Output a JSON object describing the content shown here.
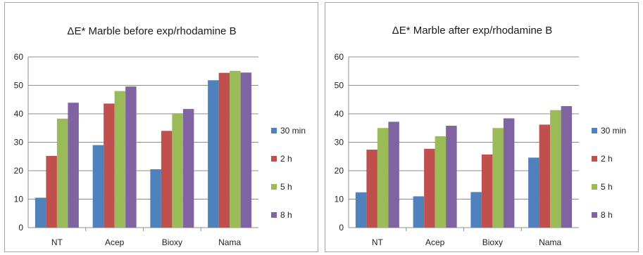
{
  "chart_data": [
    {
      "type": "bar",
      "title": "ΔE* Marble before exp/rhodamine B",
      "categories": [
        "NT",
        "Acep",
        "Bioxy",
        "Nama"
      ],
      "ylim": [
        0,
        60
      ],
      "yticks": [
        0,
        10,
        20,
        30,
        40,
        50,
        60
      ],
      "grid": true,
      "legend_position": "right",
      "series": [
        {
          "name": "30 min",
          "color": "#4f81bd",
          "values": [
            10.5,
            29,
            20.5,
            51.8
          ]
        },
        {
          "name": "2 h",
          "color": "#c0504d",
          "values": [
            25.2,
            43.6,
            34,
            54.4
          ]
        },
        {
          "name": "5 h",
          "color": "#9bbb59",
          "values": [
            38.3,
            48,
            40.2,
            55.1
          ]
        },
        {
          "name": "8 h",
          "color": "#8064a2",
          "values": [
            43.9,
            49.6,
            41.7,
            54.5
          ]
        }
      ]
    },
    {
      "type": "bar",
      "title": "ΔE* Marble after exp/rhodamine B",
      "categories": [
        "NT",
        "Acep",
        "Bioxy",
        "Nama"
      ],
      "ylim": [
        0,
        60
      ],
      "yticks": [
        0,
        10,
        20,
        30,
        40,
        50,
        60
      ],
      "grid": true,
      "legend_position": "right",
      "series": [
        {
          "name": "30 min",
          "color": "#4f81bd",
          "values": [
            12.4,
            11,
            12.5,
            24.6
          ]
        },
        {
          "name": "2 h",
          "color": "#c0504d",
          "values": [
            27.4,
            27.7,
            25.7,
            36.2
          ]
        },
        {
          "name": "5 h",
          "color": "#9bbb59",
          "values": [
            35,
            32.1,
            35,
            41.3
          ]
        },
        {
          "name": "8 h",
          "color": "#8064a2",
          "values": [
            37.2,
            35.8,
            38.4,
            42.7
          ]
        }
      ]
    }
  ]
}
